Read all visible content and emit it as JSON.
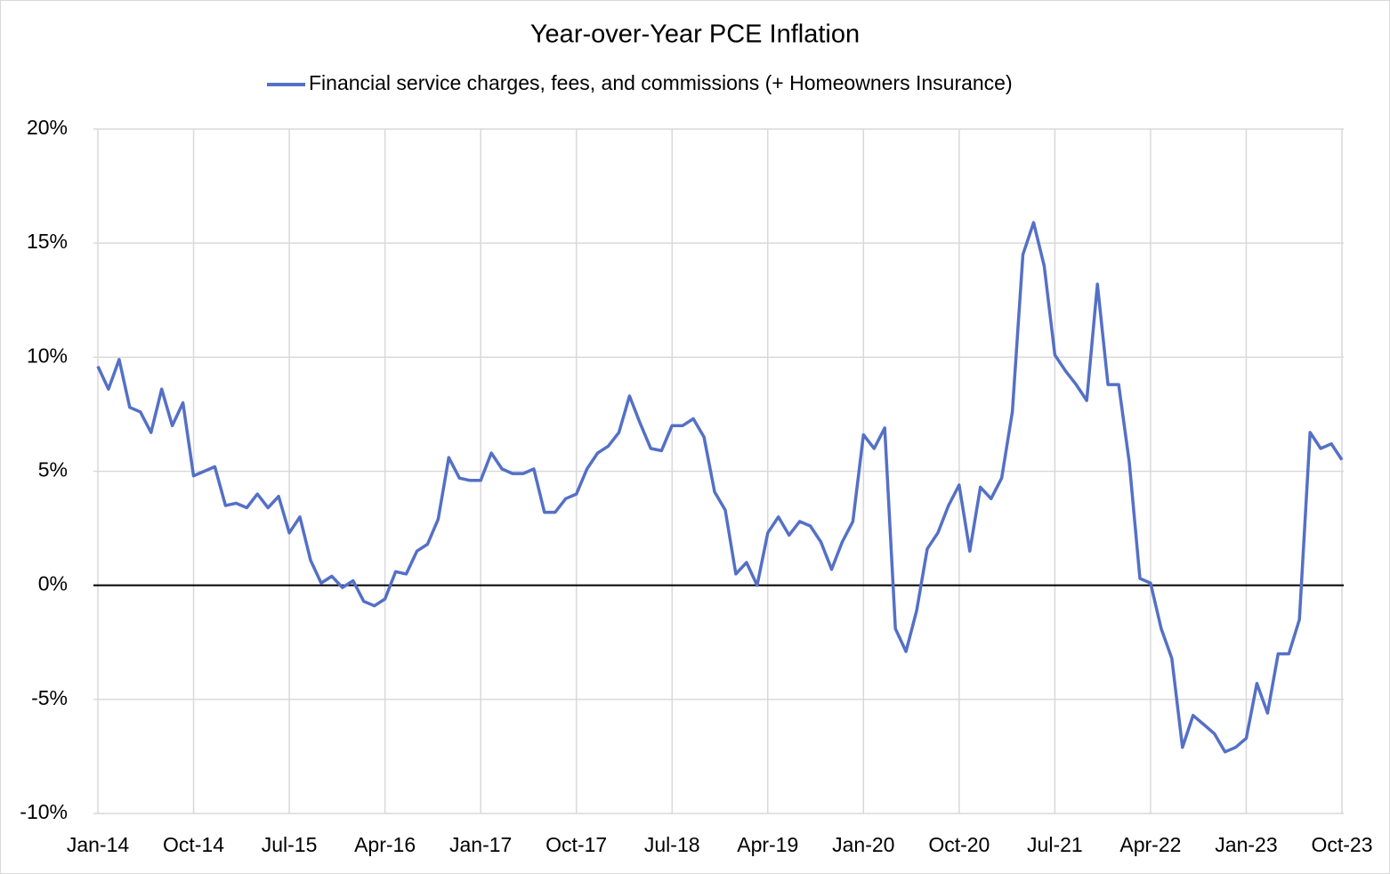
{
  "chart_data": {
    "type": "line",
    "title": "Year-over-Year PCE Inflation",
    "categories": [
      "Jan-14",
      null,
      null,
      null,
      null,
      null,
      null,
      null,
      null,
      "Oct-14",
      null,
      null,
      null,
      null,
      null,
      null,
      null,
      null,
      "Jul-15",
      null,
      null,
      null,
      null,
      null,
      null,
      null,
      null,
      "Apr-16",
      null,
      null,
      null,
      null,
      null,
      null,
      null,
      null,
      "Jan-17",
      null,
      null,
      null,
      null,
      null,
      null,
      null,
      null,
      "Oct-17",
      null,
      null,
      null,
      null,
      null,
      null,
      null,
      null,
      "Jul-18",
      null,
      null,
      null,
      null,
      null,
      null,
      null,
      null,
      "Apr-19",
      null,
      null,
      null,
      null,
      null,
      null,
      null,
      null,
      "Jan-20",
      null,
      null,
      null,
      null,
      null,
      null,
      null,
      null,
      "Oct-20",
      null,
      null,
      null,
      null,
      null,
      null,
      null,
      null,
      "Jul-21",
      null,
      null,
      null,
      null,
      null,
      null,
      null,
      null,
      "Apr-22",
      null,
      null,
      null,
      null,
      null,
      null,
      null,
      null,
      "Jan-23",
      null,
      null,
      null,
      null,
      null,
      null,
      null,
      null,
      "Oct-23"
    ],
    "series": [
      {
        "name": "Financial service charges, fees, and commissions (+ Homeowners Insurance)",
        "color": "#5470c6",
        "values": [
          9.6,
          8.6,
          9.9,
          7.8,
          7.6,
          6.7,
          8.6,
          7.0,
          8.0,
          4.8,
          5.0,
          5.2,
          3.5,
          3.6,
          3.4,
          4.0,
          3.4,
          3.9,
          2.3,
          3.0,
          1.1,
          0.1,
          0.4,
          -0.1,
          0.2,
          -0.7,
          -0.9,
          -0.6,
          0.6,
          0.5,
          1.5,
          1.8,
          2.9,
          5.6,
          4.7,
          4.6,
          4.6,
          5.8,
          5.1,
          4.9,
          4.9,
          5.1,
          3.2,
          3.2,
          3.8,
          4.0,
          5.1,
          5.8,
          6.1,
          6.7,
          8.3,
          7.1,
          6.0,
          5.9,
          7.0,
          7.0,
          7.3,
          6.5,
          4.1,
          3.3,
          0.5,
          1.0,
          0.0,
          2.3,
          3.0,
          2.2,
          2.8,
          2.6,
          1.9,
          0.7,
          1.9,
          2.8,
          6.6,
          6.0,
          6.9,
          -1.9,
          -2.9,
          -1.1,
          1.6,
          2.3,
          3.5,
          4.4,
          1.5,
          4.3,
          3.8,
          4.7,
          7.6,
          14.5,
          15.9,
          14.0,
          10.1,
          9.4,
          8.8,
          8.1,
          13.2,
          8.8,
          8.8,
          5.4,
          0.3,
          0.1,
          -1.9,
          -3.2,
          -7.1,
          -5.7,
          -6.1,
          -6.5,
          -7.3,
          -7.1,
          -6.7,
          -4.3,
          -5.6,
          -3.0,
          -3.0,
          -1.5,
          6.7,
          6.0,
          6.2,
          5.5
        ]
      }
    ],
    "ylim": [
      -10,
      20
    ],
    "yticks": [
      {
        "value": -10,
        "label": "-10%"
      },
      {
        "value": -5,
        "label": "-5%"
      },
      {
        "value": 0,
        "label": "0%"
      },
      {
        "value": 5,
        "label": "5%"
      },
      {
        "value": 10,
        "label": "10%"
      },
      {
        "value": 15,
        "label": "15%"
      },
      {
        "value": 20,
        "label": "20%"
      }
    ],
    "grid": true,
    "legend": "top"
  }
}
